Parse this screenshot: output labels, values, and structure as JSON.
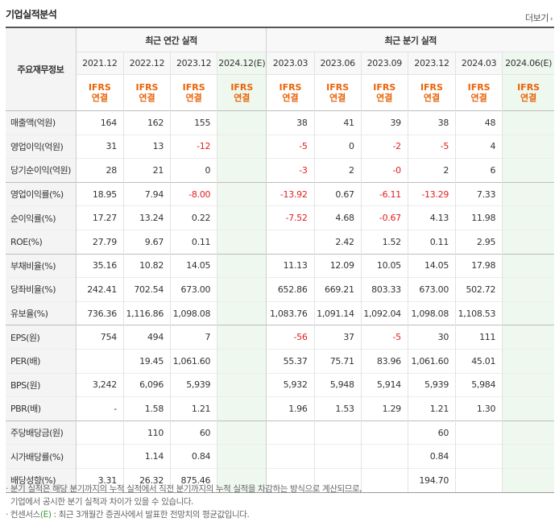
{
  "header": {
    "title": "기업실적분석",
    "more_label": "더보기",
    "more_icon": "chevron-right-icon"
  },
  "table": {
    "row_header_label": "주요재무정보",
    "group_annual": "최근 연간 실적",
    "group_quarter": "최근 분기 실적",
    "annual_periods": [
      "2021.12",
      "2022.12",
      "2023.12",
      "2024.12(E)"
    ],
    "quarter_periods": [
      "2023.03",
      "2023.06",
      "2023.09",
      "2023.12",
      "2024.03",
      "2024.06(E)"
    ],
    "ifrs_line1": "IFRS",
    "ifrs_line2": "연결",
    "rows": [
      {
        "label": "매출액(억원)",
        "values": [
          "164",
          "162",
          "155",
          "",
          "38",
          "41",
          "39",
          "38",
          "48",
          ""
        ]
      },
      {
        "label": "영업이익(억원)",
        "values": [
          "31",
          "13",
          "-12",
          "",
          "-5",
          "0",
          "-2",
          "-5",
          "4",
          ""
        ]
      },
      {
        "label": "당기순이익(억원)",
        "values": [
          "28",
          "21",
          "0",
          "",
          "-3",
          "2",
          "-0",
          "2",
          "6",
          ""
        ]
      },
      {
        "label": "영업이익률(%)",
        "values": [
          "18.95",
          "7.94",
          "-8.00",
          "",
          "-13.92",
          "0.67",
          "-6.11",
          "-13.29",
          "7.33",
          ""
        ]
      },
      {
        "label": "순이익률(%)",
        "values": [
          "17.27",
          "13.24",
          "0.22",
          "",
          "-7.52",
          "4.68",
          "-0.67",
          "4.13",
          "11.98",
          ""
        ]
      },
      {
        "label": "ROE(%)",
        "values": [
          "27.79",
          "9.67",
          "0.11",
          "",
          "",
          "2.42",
          "1.52",
          "0.11",
          "2.95",
          ""
        ]
      },
      {
        "label": "부채비율(%)",
        "values": [
          "35.16",
          "10.82",
          "14.05",
          "",
          "11.13",
          "12.09",
          "10.05",
          "14.05",
          "17.98",
          ""
        ]
      },
      {
        "label": "당좌비율(%)",
        "values": [
          "242.41",
          "702.54",
          "673.00",
          "",
          "652.86",
          "669.21",
          "803.33",
          "673.00",
          "502.72",
          ""
        ]
      },
      {
        "label": "유보율(%)",
        "values": [
          "736.36",
          "1,116.86",
          "1,098.08",
          "",
          "1,083.76",
          "1,091.14",
          "1,092.04",
          "1,098.08",
          "1,108.53",
          ""
        ]
      },
      {
        "label": "EPS(원)",
        "values": [
          "754",
          "494",
          "7",
          "",
          "-56",
          "37",
          "-5",
          "30",
          "111",
          ""
        ]
      },
      {
        "label": "PER(배)",
        "values": [
          "",
          "19.45",
          "1,061.60",
          "",
          "55.37",
          "75.71",
          "83.96",
          "1,061.60",
          "45.01",
          ""
        ]
      },
      {
        "label": "BPS(원)",
        "values": [
          "3,242",
          "6,096",
          "5,939",
          "",
          "5,932",
          "5,948",
          "5,914",
          "5,939",
          "5,984",
          ""
        ]
      },
      {
        "label": "PBR(배)",
        "values": [
          "-",
          "1.58",
          "1.21",
          "",
          "1.96",
          "1.53",
          "1.29",
          "1.21",
          "1.30",
          ""
        ]
      },
      {
        "label": "주당배당금(원)",
        "values": [
          "",
          "110",
          "60",
          "",
          "",
          "",
          "",
          "60",
          "",
          ""
        ]
      },
      {
        "label": "시가배당률(%)",
        "values": [
          "",
          "1.14",
          "0.84",
          "",
          "",
          "",
          "",
          "0.84",
          "",
          ""
        ]
      },
      {
        "label": "배당성향(%)",
        "values": [
          "3.31",
          "26.32",
          "875.46",
          "",
          "",
          "",
          "",
          "194.70",
          "",
          ""
        ]
      }
    ],
    "group_start_rows": [
      3,
      6,
      9,
      13
    ]
  },
  "notes": [
    "· 분기 실적은 해당 분기까지의 누적 실적에서 직전 분기까지의 누적 실적을 차감하는 방식으로 계산되므로,",
    "  기업에서 공시한 분기 실적과 차이가 있을 수 있습니다.",
    "· 컨센서스(E) : 최근 3개월간 증권사에서 발표한 전망치의 평균값입니다."
  ],
  "colors": {
    "accent_orange": "#e8630a",
    "negative_red": "#e02020",
    "estimate_bg": "#eef8ee",
    "estimate_green": "#3a9a3a"
  }
}
